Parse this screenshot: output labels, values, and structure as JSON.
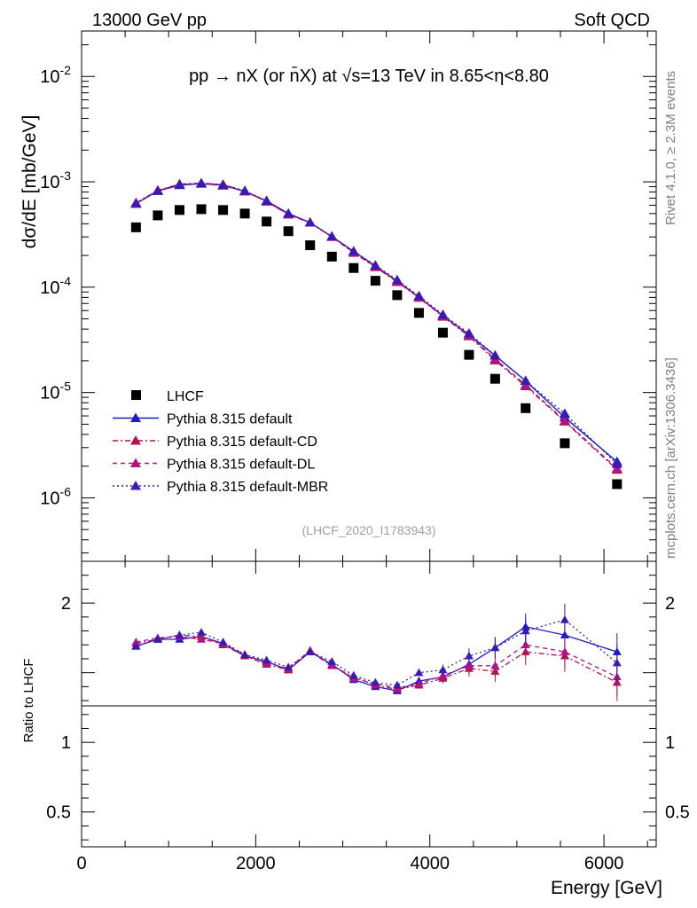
{
  "header": {
    "left": "13000 GeV pp",
    "right": "Soft QCD"
  },
  "side_text": {
    "rivet": "Rivet 4.1.0, ≥ 2.3M events",
    "mcplots": "mcplots.cern.ch [arXiv:1306.3436]"
  },
  "chart_data": {
    "type": "scatter",
    "title": "pp → nX (or n̄X) at √s=13 TeV in 8.65<η<8.80",
    "analysis_tag": "(LHCF_2020_I1783943)",
    "xlabel": "Energy [GeV]",
    "ylabel": "dσ/dE [mb/GeV]",
    "ratio_ylabel": "Ratio to LHCF",
    "xlim": [
      0,
      6600
    ],
    "ylim": [
      2.5e-07,
      0.027
    ],
    "yscale": "log",
    "ratio_ylim": [
      0.25,
      2.3
    ],
    "x_ticks": [
      "0",
      "2000",
      "4000",
      "6000"
    ],
    "y_ticks": [
      "10^-6",
      "10^-5",
      "10^-4",
      "10^-3",
      "10^-2"
    ],
    "ratio_ticks": [
      "0.5",
      "1",
      "2"
    ],
    "x": [
      625,
      875,
      1125,
      1375,
      1625,
      1875,
      2125,
      2375,
      2625,
      2875,
      3125,
      3375,
      3625,
      3875,
      4150,
      4450,
      4750,
      5100,
      5550,
      6150
    ],
    "series": [
      {
        "name": "LHCF",
        "style": "square",
        "color": "#000000",
        "values": [
          0.00037,
          0.00048,
          0.00054,
          0.00055,
          0.00054,
          0.0005,
          0.00042,
          0.00034,
          0.00025,
          0.000195,
          0.000152,
          0.000115,
          8.4e-05,
          5.7e-05,
          3.7e-05,
          2.28e-05,
          1.35e-05,
          7.1e-06,
          3.3e-06,
          1.35e-06
        ]
      },
      {
        "name": "Pythia 8.315 default",
        "style": "solid",
        "color": "#1a1acc",
        "values": [
          0.00062,
          0.00082,
          0.00093,
          0.00096,
          0.00093,
          0.00081,
          0.00066,
          0.0005,
          0.00041,
          0.000302,
          0.000218,
          0.000159,
          0.000114,
          8.03e-05,
          5.35e-05,
          3.53e-05,
          2.24e-05,
          1.29e-05,
          5.8e-06,
          2.2e-06
        ]
      },
      {
        "name": "Pythia 8.315 default-CD",
        "style": "dashdot",
        "color": "#b3124f",
        "values": [
          0.00063,
          0.00083,
          0.00095,
          0.00097,
          0.00094,
          0.00082,
          0.00065,
          0.00049,
          0.00041,
          0.0003,
          0.000212,
          0.000155,
          0.000112,
          7.95e-05,
          5.25e-05,
          3.43e-05,
          2.02e-05,
          1.15e-05,
          5.3e-06,
          1.85e-06
        ]
      },
      {
        "name": "Pythia 8.315 default-DL",
        "style": "dashed",
        "color": "#b31280",
        "values": [
          0.00063,
          0.00082,
          0.00095,
          0.00096,
          0.00092,
          0.00081,
          0.00065,
          0.00049,
          0.00041,
          0.0003,
          0.000214,
          0.000157,
          0.000113,
          8.02e-05,
          5.32e-05,
          3.48e-05,
          2.08e-05,
          1.18e-05,
          5.4e-06,
          1.9e-06
        ]
      },
      {
        "name": "Pythia 8.315 default-MBR",
        "style": "dotted",
        "color": "#3a1ab3",
        "values": [
          0.00062,
          0.00082,
          0.00094,
          0.00097,
          0.00094,
          0.00082,
          0.00066,
          0.0005,
          0.00041,
          0.000303,
          0.000219,
          0.000161,
          0.000117,
          8.24e-05,
          5.48e-05,
          3.64e-05,
          2.25e-05,
          1.29e-05,
          6.3e-06,
          2.1e-06
        ]
      }
    ],
    "ratios": [
      {
        "name": "Pythia 8.315 default",
        "values": [
          1.69,
          1.74,
          1.74,
          1.76,
          1.71,
          1.62,
          1.58,
          1.52,
          1.65,
          1.56,
          1.45,
          1.4,
          1.37,
          1.44,
          1.47,
          1.56,
          1.68,
          1.83,
          1.77,
          1.65
        ]
      },
      {
        "name": "Pythia 8.315 default-CD",
        "values": [
          1.71,
          1.74,
          1.77,
          1.76,
          1.7,
          1.62,
          1.56,
          1.52,
          1.65,
          1.55,
          1.47,
          1.41,
          1.38,
          1.41,
          1.46,
          1.53,
          1.51,
          1.65,
          1.62,
          1.43
        ]
      },
      {
        "name": "Pythia 8.315 default-DL",
        "values": [
          1.72,
          1.75,
          1.76,
          1.74,
          1.71,
          1.63,
          1.57,
          1.53,
          1.66,
          1.55,
          1.46,
          1.42,
          1.39,
          1.42,
          1.48,
          1.55,
          1.55,
          1.7,
          1.65,
          1.47
        ]
      },
      {
        "name": "Pythia 8.315 default-MBR",
        "values": [
          1.69,
          1.74,
          1.77,
          1.79,
          1.72,
          1.63,
          1.59,
          1.54,
          1.65,
          1.58,
          1.48,
          1.43,
          1.41,
          1.5,
          1.52,
          1.62,
          1.68,
          1.8,
          1.88,
          1.57
        ]
      }
    ]
  }
}
